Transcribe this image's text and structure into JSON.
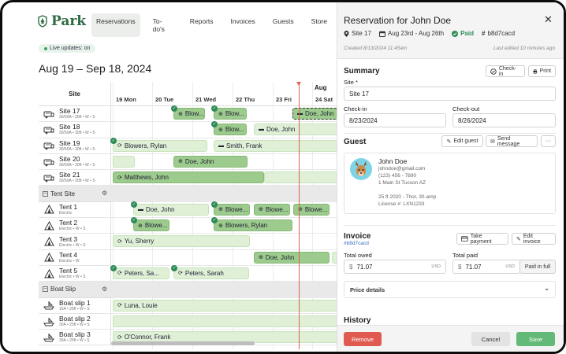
{
  "app": {
    "name": "Park"
  },
  "nav": [
    {
      "label": "Reservations",
      "active": true
    },
    {
      "label": "To-do's"
    },
    {
      "label": "Reports"
    },
    {
      "label": "Invoices"
    },
    {
      "label": "Guests"
    },
    {
      "label": "Store"
    }
  ],
  "live": "Live updates: on",
  "range": "Aug 19 – Sep 18, 2024",
  "calendar": {
    "site_header": "Site",
    "month": "Aug",
    "days": [
      {
        "label": "19 Mon",
        "x": 2
      },
      {
        "label": "20 Tue",
        "x": 52
      },
      {
        "label": "21 Wed",
        "x": 103
      },
      {
        "label": "22 Thu",
        "x": 154
      },
      {
        "label": "23 Fri",
        "x": 205
      },
      {
        "label": "24 Sat",
        "x": 255
      }
    ],
    "rows": [
      {
        "type": "site",
        "name": "Site 17",
        "sub": "30/50A • 30ft • W • S"
      },
      {
        "type": "site",
        "name": "Site 18",
        "sub": "30/50A • 30ft • W • S"
      },
      {
        "type": "site",
        "name": "Site 19",
        "sub": "30/50A • 30ft • W • S"
      },
      {
        "type": "site",
        "name": "Site 20",
        "sub": "30/50A • 30ft • W • S"
      },
      {
        "type": "site",
        "name": "Site 21",
        "sub": "30/50A • 30ft • W • S"
      },
      {
        "type": "group",
        "name": "Tent Site"
      },
      {
        "type": "tent",
        "name": "Tent 1",
        "sub": "Electric"
      },
      {
        "type": "tent",
        "name": "Tent 2",
        "sub": "Electric • W • S"
      },
      {
        "type": "tent",
        "name": "Tent 3",
        "sub": "Electric • W • S"
      },
      {
        "type": "tent",
        "name": "Tent 4",
        "sub": "Electric • W"
      },
      {
        "type": "tent",
        "name": "Tent 5",
        "sub": "Electric • W • S"
      },
      {
        "type": "group",
        "name": "Boat Slip"
      },
      {
        "type": "boat",
        "name": "Boat slip 1",
        "sub": "15A • 25ft • W • S"
      },
      {
        "type": "boat",
        "name": "Boat slip 2",
        "sub": "30A • 25ft • W • S"
      },
      {
        "type": "boat",
        "name": "Boat slip 3",
        "sub": "30A • 25ft • W • S"
      }
    ],
    "bars": [
      {
        "row": 0,
        "x": 79,
        "w": 40,
        "label": "Blow...",
        "style": "dk",
        "icon": "globe",
        "check": true
      },
      {
        "row": 0,
        "x": 130,
        "w": 42,
        "label": "Blow...",
        "style": "dk",
        "icon": "globe",
        "check": true
      },
      {
        "row": 0,
        "x": 230,
        "w": 60,
        "label": "Doe, John",
        "style": "sel",
        "icon": "card",
        "check": false
      },
      {
        "row": 1,
        "x": 130,
        "w": 42,
        "label": "Blow...",
        "style": "dk",
        "icon": "globe",
        "check": true
      },
      {
        "row": 1,
        "x": 181,
        "w": 110,
        "label": "Doe, John",
        "style": "lt",
        "icon": "card",
        "check": false
      },
      {
        "row": 2,
        "x": 2,
        "w": 120,
        "label": "Blowers, Rylan",
        "style": "lt",
        "icon": "refresh",
        "check": true
      },
      {
        "row": 2,
        "x": 130,
        "w": 160,
        "label": "Smith, Frank",
        "style": "lt",
        "icon": "card",
        "check": false
      },
      {
        "row": 3,
        "x": 2,
        "w": 28,
        "label": "",
        "style": "lt",
        "icon": "",
        "check": false
      },
      {
        "row": 3,
        "x": 79,
        "w": 94,
        "label": "Doe, John",
        "style": "dk",
        "icon": "globe",
        "check": false
      },
      {
        "row": 4,
        "x": 2,
        "w": 192,
        "label": "Matthews, John",
        "style": "dk",
        "icon": "refresh",
        "check": false
      },
      {
        "row": 4,
        "x": 194,
        "w": 96,
        "label": "",
        "style": "lt",
        "icon": "",
        "check": false
      },
      {
        "row": 6,
        "x": 28,
        "w": 96,
        "label": "Doe, John",
        "style": "lt",
        "icon": "card",
        "check": true
      },
      {
        "row": 6,
        "x": 130,
        "w": 46,
        "label": "Blowe...",
        "style": "dk",
        "icon": "globe",
        "check": true
      },
      {
        "row": 6,
        "x": 181,
        "w": 46,
        "label": "Blowe...",
        "style": "dk",
        "icon": "globe",
        "check": false
      },
      {
        "row": 6,
        "x": 231,
        "w": 46,
        "label": "Blowe...",
        "style": "dk",
        "icon": "globe",
        "check": false
      },
      {
        "row": 7,
        "x": 28,
        "w": 46,
        "label": "Blowe...",
        "style": "dk",
        "icon": "globe",
        "check": true
      },
      {
        "row": 7,
        "x": 130,
        "w": 100,
        "label": "Blowers, Rylan",
        "style": "dk",
        "icon": "globe",
        "check": true
      },
      {
        "row": 8,
        "x": 2,
        "w": 174,
        "label": "Yu, Sherry",
        "style": "lt",
        "icon": "refresh",
        "check": false
      },
      {
        "row": 9,
        "x": 181,
        "w": 96,
        "label": "Doe, John",
        "style": "dk",
        "icon": "globe",
        "check": false
      },
      {
        "row": 9,
        "x": 280,
        "w": 10,
        "label": "",
        "style": "lt",
        "icon": "",
        "check": false
      },
      {
        "row": 10,
        "x": 2,
        "w": 72,
        "label": "Peters, Sa...",
        "style": "lt",
        "icon": "refresh",
        "check": true
      },
      {
        "row": 10,
        "x": 79,
        "w": 96,
        "label": "Peters, Sarah",
        "style": "lt",
        "icon": "refresh",
        "check": true
      },
      {
        "row": 12,
        "x": 2,
        "w": 288,
        "label": "Luna, Louie",
        "style": "lt",
        "icon": "refresh",
        "check": false
      },
      {
        "row": 13,
        "x": 2,
        "w": 288,
        "label": "",
        "style": "lt",
        "icon": "",
        "check": false
      },
      {
        "row": 14,
        "x": 2,
        "w": 288,
        "label": "O'Connor, Frank",
        "style": "lt",
        "icon": "refresh",
        "check": false
      }
    ]
  },
  "panel": {
    "title": "Reservation for John Doe",
    "meta": {
      "site": "Site 17",
      "dates": "Aug 23rd - Aug 26th",
      "status": "Paid",
      "code": "b8d7cacd"
    },
    "created": "Created 8/13/2024 11:45am",
    "edited": "Last edited 10 minutes ago",
    "summary": {
      "heading": "Summary",
      "checkin_btn": "Check-in",
      "print_btn": "Print",
      "site_label": "Site *",
      "site_value": "Site 17",
      "checkin_label": "Check-in",
      "checkin_value": "8/23/2024",
      "checkout_label": "Check-out",
      "checkout_value": "8/26/2024"
    },
    "guest": {
      "heading": "Guest",
      "edit_btn": "Edit guest",
      "message_btn": "Send message",
      "more_btn": "···",
      "name": "John Doe",
      "email": "johndoe@gmail.com",
      "phone": "(123) 456 - 7890",
      "address": "1 Main St Tucson AZ",
      "vehicle": "25 ft 2020 - Thor, 30-amp",
      "license": "License #: LXN1233"
    },
    "invoice": {
      "heading": "Invoice",
      "code": "#b8d7cacd",
      "take_payment_btn": "Take payment",
      "edit_invoice_btn": "Edit invoice",
      "owed_label": "Total owed",
      "owed_value": "71.07",
      "paid_label": "Total paid",
      "paid_value": "71.07",
      "currency_symbol": "$",
      "currency": "USD",
      "paid_full_btn": "Paid in full",
      "price_details": "Price details"
    },
    "history": "History",
    "remove_btn": "Remove",
    "cancel_btn": "Cancel",
    "save_btn": "Save"
  },
  "colors": {
    "accent": "#2e8b57",
    "remove": "#e05a52",
    "save": "#62b978",
    "bar_light": "#dff0d7",
    "bar_dark": "#9ccb8d",
    "now_line": "#e06050"
  }
}
